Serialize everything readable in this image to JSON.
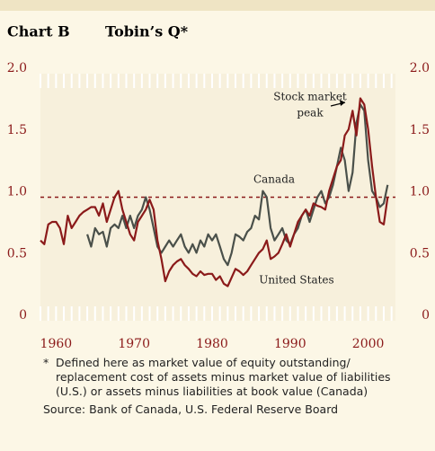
{
  "chart_data": {
    "type": "line",
    "label": "Chart B",
    "title": "Tobin’s Q*",
    "x": [
      1958,
      1958.5,
      1959,
      1959.5,
      1960,
      1960.5,
      1961,
      1961.5,
      1962,
      1962.5,
      1963,
      1963.5,
      1964,
      1964.5,
      1965,
      1965.5,
      1966,
      1966.5,
      1967,
      1967.5,
      1968,
      1968.5,
      1969,
      1969.5,
      1970,
      1970.5,
      1971,
      1971.5,
      1972,
      1972.5,
      1973,
      1973.5,
      1974,
      1974.5,
      1975,
      1975.5,
      1976,
      1976.5,
      1977,
      1977.5,
      1978,
      1978.5,
      1979,
      1979.5,
      1980,
      1980.5,
      1981,
      1981.5,
      1982,
      1982.5,
      1983,
      1983.5,
      1984,
      1984.5,
      1985,
      1985.5,
      1986,
      1986.5,
      1987,
      1987.5,
      1988,
      1988.5,
      1989,
      1989.5,
      1990,
      1990.5,
      1991,
      1991.5,
      1992,
      1992.5,
      1993,
      1993.5,
      1994,
      1994.5,
      1995,
      1995.5,
      1996,
      1996.5,
      1997,
      1997.5,
      1998,
      1998.5,
      1999,
      1999.5,
      2000,
      2000.5,
      2001,
      2001.5,
      2002,
      2002.5
    ],
    "series": [
      {
        "name": "United States",
        "color": "#8b1a1a",
        "values": [
          0.65,
          0.62,
          0.78,
          0.8,
          0.8,
          0.75,
          0.62,
          0.85,
          0.75,
          0.8,
          0.85,
          0.88,
          0.9,
          0.92,
          0.92,
          0.85,
          0.95,
          0.8,
          0.9,
          1.0,
          1.05,
          0.9,
          0.8,
          0.7,
          0.65,
          0.8,
          0.85,
          0.9,
          0.98,
          0.9,
          0.65,
          0.5,
          0.32,
          0.4,
          0.45,
          0.48,
          0.5,
          0.45,
          0.42,
          0.38,
          0.36,
          0.4,
          0.37,
          0.38,
          0.38,
          0.33,
          0.36,
          0.3,
          0.28,
          0.35,
          0.42,
          0.4,
          0.37,
          0.4,
          0.45,
          0.5,
          0.55,
          0.58,
          0.65,
          0.5,
          0.52,
          0.55,
          0.62,
          0.7,
          0.6,
          0.7,
          0.8,
          0.85,
          0.9,
          0.85,
          0.95,
          0.93,
          0.92,
          0.9,
          1.05,
          1.15,
          1.25,
          1.3,
          1.5,
          1.55,
          1.7,
          1.5,
          1.8,
          1.75,
          1.55,
          1.25,
          1.0,
          0.8,
          0.78,
          1.0
        ]
      },
      {
        "name": "Canada",
        "color": "#4a504a",
        "values": [
          null,
          null,
          null,
          null,
          null,
          null,
          null,
          null,
          null,
          null,
          null,
          null,
          0.7,
          0.6,
          0.75,
          0.7,
          0.72,
          0.6,
          0.75,
          0.78,
          0.75,
          0.85,
          0.75,
          0.85,
          0.75,
          0.85,
          0.9,
          1.0,
          0.9,
          0.75,
          0.6,
          0.55,
          0.6,
          0.65,
          0.6,
          0.65,
          0.7,
          0.6,
          0.55,
          0.62,
          0.55,
          0.65,
          0.6,
          0.7,
          0.65,
          0.7,
          0.6,
          0.5,
          0.45,
          0.55,
          0.7,
          0.68,
          0.65,
          0.72,
          0.75,
          0.85,
          0.82,
          1.05,
          1.0,
          0.75,
          0.65,
          0.7,
          0.75,
          0.65,
          0.62,
          0.7,
          0.75,
          0.85,
          0.9,
          0.8,
          0.9,
          1.0,
          1.05,
          0.95,
          1.0,
          1.1,
          1.25,
          1.4,
          1.3,
          1.05,
          1.2,
          1.6,
          1.75,
          1.7,
          1.3,
          1.05,
          1.0,
          0.92,
          0.95,
          1.1
        ]
      }
    ],
    "xlim": [
      1958,
      2003.5
    ],
    "xticks": [
      1960,
      1970,
      1980,
      1990,
      2000
    ],
    "minor_xticks": [
      1958,
      1959,
      1960,
      1961,
      1962,
      1963,
      1964,
      1965,
      1966,
      1967,
      1968,
      1969,
      1970,
      1971,
      1972,
      1973,
      1974,
      1975,
      1976,
      1977,
      1978,
      1979,
      1980,
      1981,
      1982,
      1983,
      1984,
      1985,
      1986,
      1987,
      1988,
      1989,
      1990,
      1991,
      1992,
      1993,
      1994,
      1995,
      1996,
      1997,
      1998,
      1999,
      2000,
      2001,
      2002,
      2003
    ],
    "ylim": [
      0,
      2
    ],
    "yticks": [
      {
        "value": 0,
        "label": "0"
      },
      {
        "value": 0.5,
        "label": "0.5"
      },
      {
        "value": 1,
        "label": "1.0"
      },
      {
        "value": 1.5,
        "label": "1.5"
      },
      {
        "value": 2,
        "label": "2.0"
      }
    ],
    "y2ticks": [
      {
        "value": 0,
        "label": "0"
      },
      {
        "value": 0.5,
        "label": "0.5"
      },
      {
        "value": 1,
        "label": "1.0"
      },
      {
        "value": 1.5,
        "label": "1.5"
      },
      {
        "value": 2,
        "label": "2.0"
      }
    ],
    "reference_line": {
      "value": 1,
      "color": "#8b1a1a"
    },
    "annotations": [
      {
        "lines": [
          "Stock market",
          "peak"
        ]
      },
      {
        "lines": [
          "Canada"
        ]
      },
      {
        "lines": [
          "United States"
        ]
      }
    ],
    "footnote": "Defined here as market value of equity outstanding/ replacement cost of assets minus market value of liabilities (U.S.) or assets minus liabilities at book value (Canada)",
    "footnote_marker": "*",
    "source": "Source: Bank of Canada, U.S. Federal Reserve Board"
  }
}
